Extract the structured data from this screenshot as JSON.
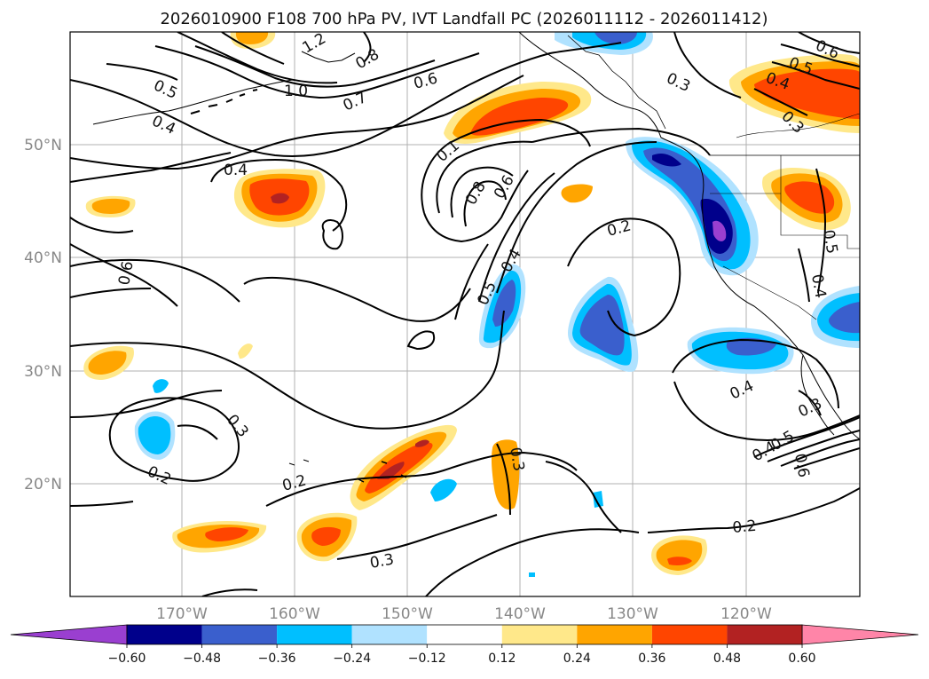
{
  "title": "2026010900 F108 700 hPa PV, IVT Landfall PC (2026011112 - 2026011412)",
  "lat_labels": [
    "50°N",
    "40°N",
    "30°N",
    "20°N"
  ],
  "lon_labels": [
    "170°W",
    "160°W",
    "150°W",
    "140°W",
    "130°W",
    "120°W"
  ],
  "colorbar": {
    "ticks": [
      "−0.60",
      "−0.48",
      "−0.36",
      "−0.24",
      "−0.12",
      "0.12",
      "0.24",
      "0.36",
      "0.48",
      "0.60"
    ],
    "colors": [
      "#9a3fd0",
      "#00008b",
      "#3a5fcd",
      "#00bfff",
      "#b0e2ff",
      "#ffffff",
      "#ffe88a",
      "#ffa500",
      "#ff4500",
      "#b22222",
      "#ff85a8"
    ]
  },
  "contour_labels": {
    "c1": "1.2",
    "c2": "0.8",
    "c3": "1.0",
    "c4": "0.7",
    "c5": "0.6",
    "c6": "0.5",
    "c7": "0.4",
    "c8": "0.6",
    "c9": "0.5",
    "c10": "0.4",
    "c11": "0.3",
    "c12": "0.3",
    "c13": "0.4",
    "c14": "0.1",
    "c15": "0.8",
    "c16": "0.6",
    "c17": "0.2",
    "c18": "0.6",
    "c19": "0.4",
    "c20": "0.5",
    "c21": "0.5",
    "c22": "0.4",
    "c23": "0.4",
    "c24": "0.3",
    "c25": "0.2",
    "c26": "0.2",
    "c27": "0.3",
    "c28": "0.3",
    "c29": "0.3",
    "c30": "0.2",
    "c31": "0.4",
    "c32": "0.5",
    "c33": "0.6"
  }
}
